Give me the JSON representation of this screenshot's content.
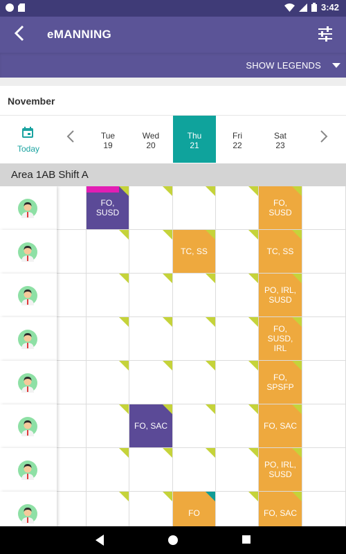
{
  "status": {
    "time": "3:42"
  },
  "appbar": {
    "title": "eMANNING",
    "back_icon": "back-arrow-icon",
    "filter_icon": "filter-sliders-icon"
  },
  "legend": {
    "label": "SHOW LEGENDS"
  },
  "month": "November",
  "today": {
    "label": "Today"
  },
  "days": [
    {
      "name": "Tue",
      "date": "19"
    },
    {
      "name": "Wed",
      "date": "20"
    },
    {
      "name": "Thu",
      "date": "21",
      "active": true
    },
    {
      "name": "Fri",
      "date": "22"
    },
    {
      "name": "Sat",
      "date": "23"
    }
  ],
  "area": "Area 1AB Shift A",
  "colors": {
    "accent": "#0fa39c",
    "appbar": "#5b5497",
    "orange": "#eea93e",
    "purple": "#5b4a97",
    "pink": "#e21eb4",
    "lime": "#c5d33a"
  },
  "rows": [
    {
      "cells": [
        "",
        "FO, SUSD",
        "",
        "",
        "",
        "FO, SUSD",
        ""
      ]
    },
    {
      "cells": [
        "",
        "",
        "",
        "TC, SS",
        "",
        "TC, SS",
        ""
      ]
    },
    {
      "cells": [
        "",
        "",
        "",
        "",
        "",
        "PO, IRL, SUSD",
        ""
      ]
    },
    {
      "cells": [
        "",
        "",
        "",
        "",
        "",
        "FO, SUSD, IRL",
        ""
      ]
    },
    {
      "cells": [
        "",
        "",
        "",
        "",
        "",
        "FO, SPSFP",
        ""
      ]
    },
    {
      "cells": [
        "",
        "",
        "FO, SAC",
        "",
        "",
        "FO, SAC",
        ""
      ]
    },
    {
      "cells": [
        "",
        "",
        "",
        "",
        "",
        "PO, IRL, SUSD",
        ""
      ]
    },
    {
      "cells": [
        "",
        "",
        "",
        "FO",
        "",
        "FO, SAC",
        ""
      ]
    }
  ]
}
